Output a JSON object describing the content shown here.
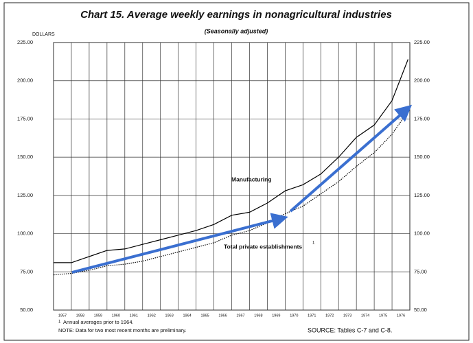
{
  "chart_data": {
    "type": "line",
    "title": "Chart 15. Average weekly earnings in nonagricultural industries",
    "subtitle": "(Seasonally adjusted)",
    "y_unit_label": "DOLLARS",
    "x": [
      1957,
      1958,
      1959,
      1960,
      1961,
      1962,
      1963,
      1964,
      1965,
      1966,
      1967,
      1968,
      1969,
      1970,
      1971,
      1972,
      1973,
      1974,
      1975,
      1976,
      1976.9
    ],
    "series": [
      {
        "name": "Manufacturing",
        "color": "#000000",
        "style": "solid",
        "values": [
          81,
          81,
          85,
          89,
          90,
          93,
          96,
          99,
          102,
          106,
          112,
          114,
          120,
          128,
          132,
          139,
          150,
          163,
          171,
          187,
          214
        ]
      },
      {
        "name": "Total private establishments",
        "color": "#000000",
        "style": "dotted",
        "values": [
          73,
          74,
          76,
          79,
          80,
          82,
          85,
          88,
          91,
          94,
          99,
          102,
          107,
          113,
          118,
          126,
          134,
          144,
          153,
          165,
          180
        ]
      }
    ],
    "series_note": "1",
    "xlim": [
      1957,
      1977
    ],
    "xticks": [
      1957,
      1958,
      1959,
      1960,
      1961,
      1962,
      1963,
      1964,
      1965,
      1966,
      1967,
      1968,
      1969,
      1970,
      1971,
      1972,
      1973,
      1974,
      1975,
      1976
    ],
    "ylim": [
      50,
      225
    ],
    "yticks": [
      {
        "value": 50,
        "label": "50.00"
      },
      {
        "value": 75,
        "label": "75.00"
      },
      {
        "value": 100,
        "label": "100.00"
      },
      {
        "value": 125,
        "label": "125.00"
      },
      {
        "value": 150,
        "label": "150.00"
      },
      {
        "value": 175,
        "label": "175.00"
      },
      {
        "value": 200,
        "label": "200.00"
      },
      {
        "value": 225,
        "label": "225.00"
      }
    ],
    "grid": true,
    "footnote": "Annual averages prior to 1964.",
    "note": "NOTE: Data for two most recent months are preliminary.",
    "source": "SOURCE: Tables C-7 and C-8."
  }
}
